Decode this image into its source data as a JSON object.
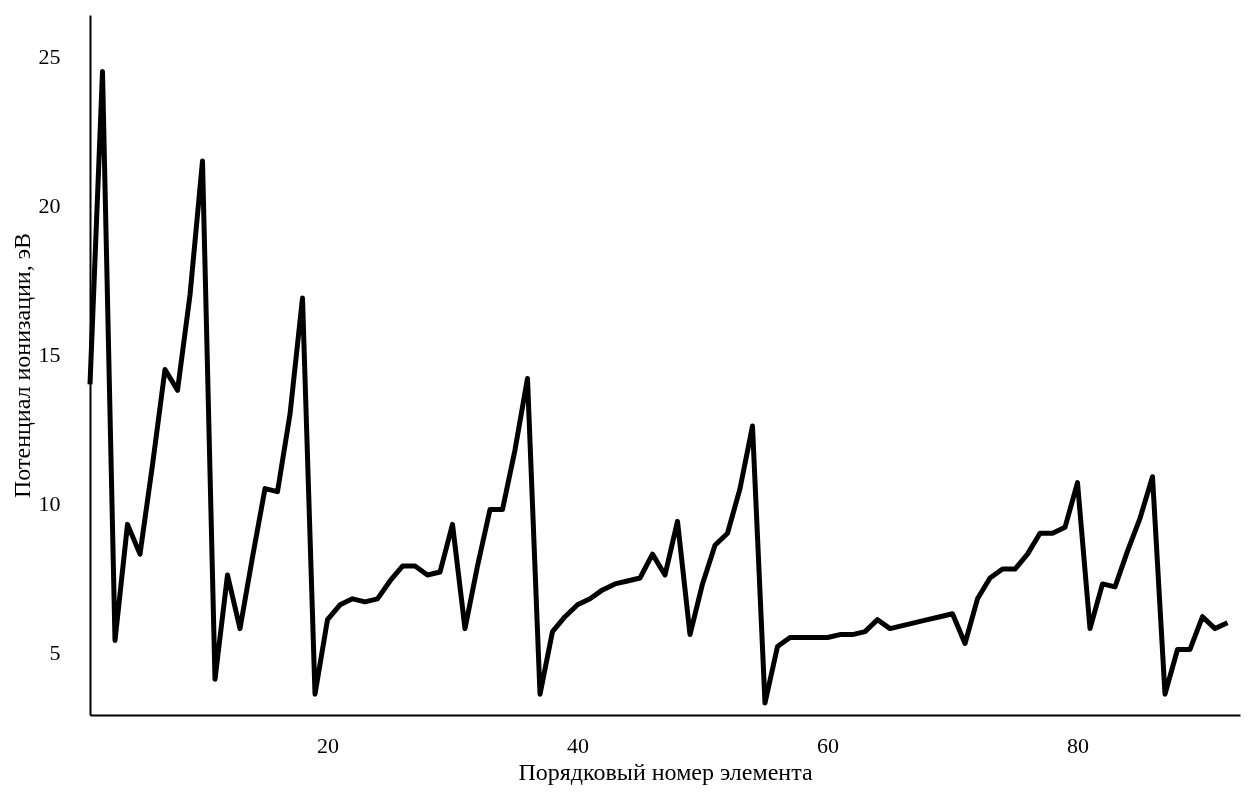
{
  "chart_data": {
    "type": "line",
    "xlabel": "Порядковый номер элемента",
    "ylabel": "Потенциал ионизации, эВ",
    "x": [
      1,
      2,
      3,
      4,
      5,
      6,
      7,
      8,
      9,
      10,
      11,
      12,
      13,
      14,
      15,
      16,
      17,
      18,
      19,
      20,
      21,
      22,
      23,
      24,
      25,
      26,
      27,
      28,
      29,
      30,
      31,
      32,
      33,
      34,
      35,
      36,
      37,
      38,
      39,
      40,
      41,
      42,
      43,
      44,
      45,
      46,
      47,
      48,
      49,
      50,
      51,
      52,
      53,
      54,
      55,
      56,
      57,
      58,
      59,
      60,
      61,
      62,
      63,
      64,
      65,
      66,
      67,
      68,
      69,
      70,
      71,
      72,
      73,
      74,
      75,
      76,
      77,
      78,
      79,
      80,
      81,
      82,
      83,
      84,
      85,
      86,
      87,
      88,
      89,
      90,
      91,
      92
    ],
    "series": [
      {
        "color": "#000000",
        "values": [
          14.0,
          24.5,
          5.4,
          9.3,
          8.3,
          11.3,
          14.5,
          13.8,
          17.0,
          21.5,
          4.1,
          7.6,
          5.8,
          8.2,
          10.5,
          10.4,
          13.0,
          16.9,
          3.6,
          6.1,
          6.6,
          6.8,
          6.7,
          6.8,
          7.4,
          7.9,
          7.9,
          7.6,
          7.7,
          9.3,
          5.8,
          7.9,
          9.8,
          9.8,
          11.8,
          14.2,
          3.6,
          5.7,
          6.2,
          6.6,
          6.8,
          7.1,
          7.3,
          7.4,
          7.5,
          8.3,
          7.6,
          9.4,
          5.6,
          7.3,
          8.6,
          9.0,
          10.5,
          12.6,
          3.3,
          5.2,
          5.5,
          5.5,
          5.5,
          5.5,
          5.6,
          5.6,
          5.7,
          6.1,
          5.8,
          5.9,
          6.0,
          6.1,
          6.2,
          6.3,
          5.3,
          6.8,
          7.5,
          7.8,
          7.8,
          8.3,
          9.0,
          9.0,
          9.2,
          10.7,
          5.8,
          7.3,
          7.2,
          8.4,
          9.5,
          10.9,
          3.6,
          5.1,
          5.1,
          6.2,
          5.8,
          6.0
        ]
      }
    ],
    "xlim": [
      1,
      93
    ],
    "xticks": [
      20,
      40,
      60,
      80
    ],
    "ylim": [
      2.9,
      26.4
    ],
    "yticks": [
      5,
      10,
      15,
      20,
      25
    ],
    "grid": false,
    "line_style": "solid",
    "marker": "none"
  }
}
